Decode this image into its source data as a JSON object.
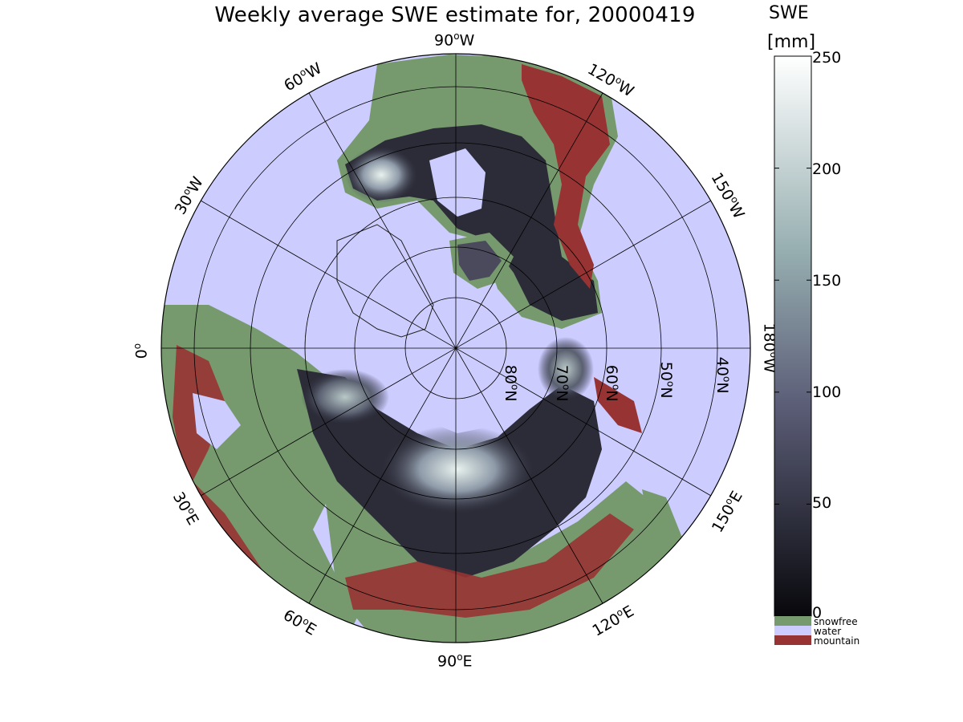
{
  "title": "Weekly average SWE estimate for, 20000419",
  "colorbar": {
    "title_line1": "SWE",
    "title_line2": "[mm]",
    "ticks": [
      "250",
      "200",
      "150",
      "100",
      "50",
      "0"
    ],
    "categories": [
      {
        "label": "snowfree",
        "color": "#769a6e"
      },
      {
        "label": "water",
        "color": "#ccccff"
      },
      {
        "label": "mountain",
        "color": "#983333"
      }
    ]
  },
  "lon_labels": {
    "w90": {
      "deg": "90",
      "hem": "W"
    },
    "w60": {
      "deg": "60",
      "hem": "W"
    },
    "w30": {
      "deg": "30",
      "hem": "W"
    },
    "zero": {
      "deg": "0",
      "hem": ""
    },
    "e30": {
      "deg": "30",
      "hem": "E"
    },
    "e60": {
      "deg": "60",
      "hem": "E"
    },
    "e90": {
      "deg": "90",
      "hem": "E"
    },
    "e120": {
      "deg": "120",
      "hem": "E"
    },
    "e150": {
      "deg": "150",
      "hem": "E"
    },
    "w180": {
      "deg": "180",
      "hem": "W"
    },
    "w150": {
      "deg": "150",
      "hem": "W"
    },
    "w120": {
      "deg": "120",
      "hem": "W"
    }
  },
  "lat_labels": {
    "n80": {
      "deg": "80",
      "hem": "N"
    },
    "n70": {
      "deg": "70",
      "hem": "N"
    },
    "n60": {
      "deg": "60",
      "hem": "N"
    },
    "n50": {
      "deg": "50",
      "hem": "N"
    },
    "n40": {
      "deg": "40",
      "hem": "N"
    }
  },
  "colors": {
    "water": "#ccccff",
    "snowfree": "#769a6e",
    "mountain": "#983333",
    "swe_low": "#0a0a10",
    "swe_high": "#ffffff"
  }
}
